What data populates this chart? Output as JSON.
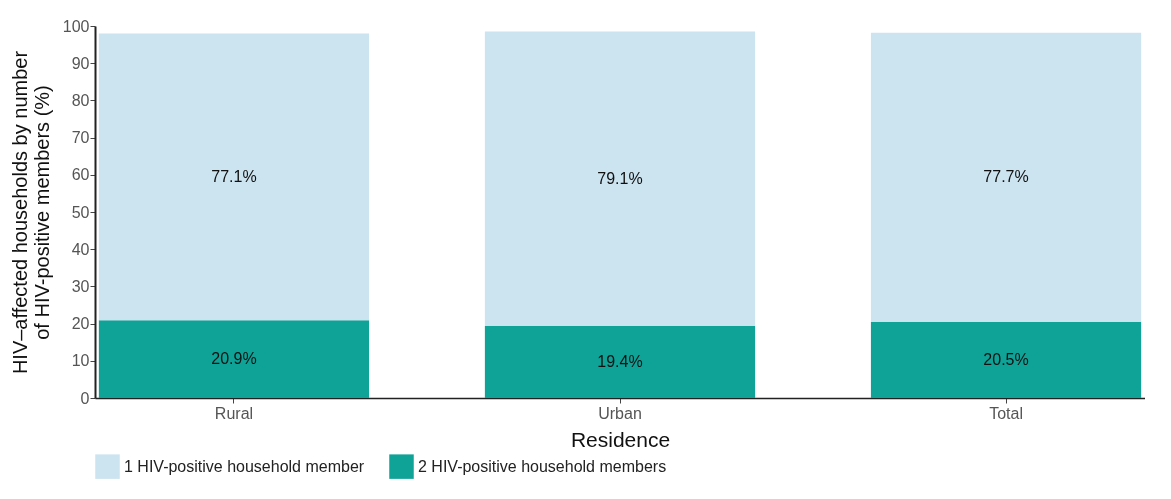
{
  "chart_data": {
    "type": "bar",
    "stacked": true,
    "xlabel": "Residence",
    "ylabel": "HIV–affected households by number of HIV-positive members (%)",
    "categories": [
      "Rural",
      "Urban",
      "Total"
    ],
    "series": [
      {
        "name": "2 HIV-positive household members",
        "color": "#0fa398",
        "values": [
          20.9,
          19.4,
          20.5
        ],
        "value_labels": [
          "20.9%",
          "19.4%",
          "20.5%"
        ]
      },
      {
        "name": "1 HIV-positive household member",
        "color": "#cce3f0",
        "values": [
          77.1,
          79.1,
          77.7
        ],
        "value_labels": [
          "77.1%",
          "79.1%",
          "77.7%"
        ]
      }
    ],
    "ylim": [
      0,
      100
    ],
    "yticks": [
      0,
      10,
      20,
      30,
      40,
      50,
      60,
      70,
      80,
      90,
      100
    ],
    "legend": "bottom",
    "grid": false
  }
}
